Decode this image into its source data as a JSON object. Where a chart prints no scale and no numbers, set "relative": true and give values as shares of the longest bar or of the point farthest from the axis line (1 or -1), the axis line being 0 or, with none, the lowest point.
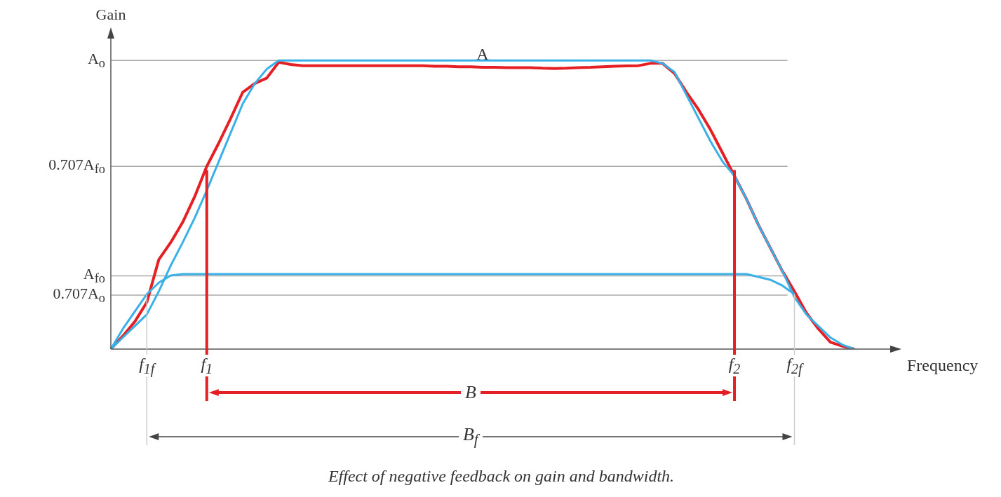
{
  "chart_data": {
    "type": "line",
    "relative": true,
    "xlabel": "Frequency",
    "ylabel": "Gain",
    "categories": [
      null,
      null,
      null,
      "f$_{1f}$",
      null,
      null,
      null,
      null,
      "f$_{1}$",
      null,
      null,
      null,
      null,
      null,
      null,
      null,
      null,
      null,
      null,
      null,
      null,
      null,
      null,
      null,
      null,
      null,
      null,
      null,
      null,
      null,
      null,
      null,
      null,
      null,
      null,
      null,
      null,
      null,
      null,
      null,
      null,
      null,
      null,
      null,
      null,
      null,
      null,
      null,
      null,
      null,
      null,
      null,
      "f$_{2}$",
      null,
      null,
      null,
      null,
      "f$_{2f}$",
      null,
      null,
      null,
      null,
      null
    ],
    "legend": false,
    "marker": "none",
    "tick_labels": "x",
    "series": [
      {
        "color": "#3ab0e8",
        "values": [
          0,
          0.04,
          0.08,
          0.12,
          0.2,
          0.29,
          0.37,
          0.455,
          0.55,
          0.65,
          0.75,
          0.85,
          0.92,
          0.97,
          1,
          1,
          1,
          1,
          1,
          1,
          1,
          1,
          1,
          1,
          1,
          1,
          1,
          1,
          1,
          1,
          1,
          1,
          1,
          1,
          1,
          1,
          1,
          1,
          1,
          1,
          1,
          1,
          1,
          1,
          1,
          1,
          0.99,
          0.96,
          0.88,
          0.8,
          0.72,
          0.65,
          0.6,
          0.52,
          0.43,
          0.35,
          0.27,
          0.18,
          0.12,
          0.08,
          0.04,
          0.015,
          0
        ]
      },
      {
        "color": "#3ab0e8",
        "values": [
          0,
          0.07,
          0.13,
          0.19,
          0.23,
          0.255,
          0.26,
          0.26,
          0.26,
          0.26,
          0.26,
          0.26,
          0.26,
          0.26,
          0.26,
          0.26,
          0.26,
          0.26,
          0.26,
          0.26,
          0.26,
          0.26,
          0.26,
          0.26,
          0.26,
          0.26,
          0.26,
          0.26,
          0.26,
          0.26,
          0.26,
          0.26,
          0.26,
          0.26,
          0.26,
          0.26,
          0.26,
          0.26,
          0.26,
          0.26,
          0.26,
          0.26,
          0.26,
          0.26,
          0.26,
          0.26,
          0.26,
          0.26,
          0.26,
          0.26,
          0.26,
          0.26,
          0.26,
          0.26,
          0.25,
          0.24,
          0.22,
          0.19,
          null,
          null,
          null,
          null,
          null
        ]
      },
      {
        "name": "A",
        "color": "#e52025",
        "values": [
          0,
          0.045,
          0.095,
          0.162,
          0.31,
          0.37,
          0.44,
          0.529,
          0.633,
          0.714,
          0.8,
          0.89,
          0.92,
          0.939,
          0.994,
          0.986,
          0.982,
          0.982,
          0.982,
          0.982,
          0.982,
          0.982,
          0.982,
          0.982,
          0.982,
          0.982,
          0.982,
          0.98,
          0.98,
          0.978,
          0.978,
          0.976,
          0.976,
          0.975,
          0.975,
          0.975,
          0.973,
          0.972,
          0.973,
          0.975,
          0.976,
          0.978,
          0.98,
          0.981,
          0.982,
          0.99,
          0.99,
          0.955,
          0.89,
          0.83,
          0.76,
          0.68,
          0.6,
          0.52,
          0.43,
          0.35,
          0.27,
          0.2,
          0.125,
          0.07,
          0.024,
          0.01,
          0
        ]
      }
    ],
    "ref_lines": [
      {
        "axis": "y",
        "value": 1,
        "label": "A$_{o}$",
        "color": "#aaaaaa"
      },
      {
        "axis": "y",
        "value": 0.633,
        "label": "0.707A$_{fo}$",
        "color": "#aaaaaa"
      },
      {
        "axis": "y",
        "value": 0.254,
        "label": "A$_{fo}$",
        "color": "#aaaaaa"
      },
      {
        "axis": "y",
        "value": 0.187,
        "label": "0.707A$_{o}$",
        "color": "#aaaaaa"
      }
    ],
    "annotations": [
      "B",
      "B$_{f}$",
      "Effect of negative feedback on gain and bandwidth."
    ]
  }
}
